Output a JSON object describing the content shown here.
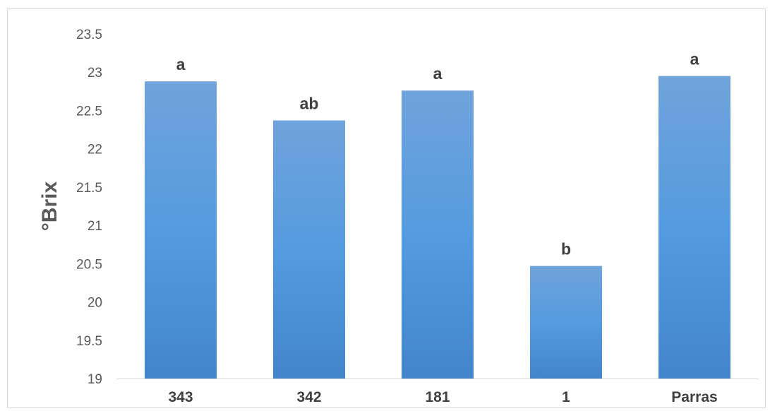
{
  "chart_data": {
    "type": "bar",
    "title": "",
    "xlabel": "",
    "ylabel": "°Brix",
    "categories": [
      "343",
      "342",
      "181",
      "1",
      "Parras"
    ],
    "values": [
      22.88,
      22.37,
      22.76,
      20.47,
      22.95
    ],
    "data_labels": [
      "a",
      "ab",
      "a",
      "b",
      "a"
    ],
    "ylim": [
      19,
      23.5
    ],
    "yticks": [
      "19",
      "19.5",
      "20",
      "20.5",
      "21",
      "21.5",
      "22",
      "22.5",
      "23",
      "23.5"
    ],
    "grid": false,
    "legend": "none",
    "bar_color_top": "#6fa3dc",
    "bar_color_mid": "#559bdf",
    "bar_color_bottom": "#4285cb"
  }
}
